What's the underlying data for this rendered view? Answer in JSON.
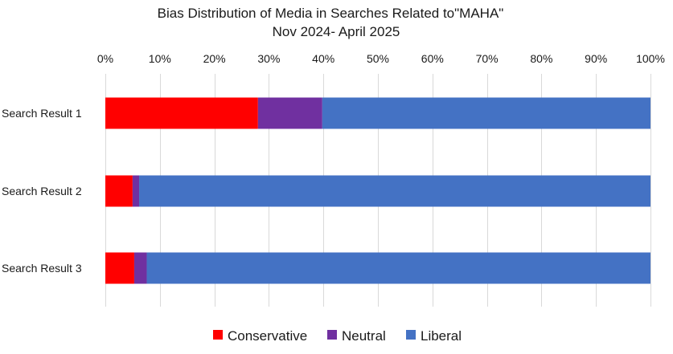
{
  "chart_data": {
    "type": "bar",
    "orientation": "horizontal",
    "stacked": "percent",
    "title": "Bias Distribution of Media in Searches Related to\"MAHA\"",
    "subtitle": "Nov 2024- April 2025",
    "categories": [
      "Search Result 1",
      "Search Result 2",
      "Search Result 3"
    ],
    "series": [
      {
        "name": "Conservative",
        "color": "#ff0000",
        "values": [
          28,
          5,
          5.3
        ]
      },
      {
        "name": "Neutral",
        "color": "#7030a0",
        "values": [
          11.8,
          1.2,
          2.3
        ]
      },
      {
        "name": "Liberal",
        "color": "#4472c4",
        "values": [
          60.2,
          93.8,
          92.4
        ]
      }
    ],
    "xlim": [
      0,
      100
    ],
    "x_ticks": [
      "0%",
      "10%",
      "20%",
      "30%",
      "40%",
      "50%",
      "60%",
      "70%",
      "80%",
      "90%",
      "100%"
    ],
    "x_axis_position": "top",
    "grid": true,
    "gridline_color": "#d9d9d9",
    "legend": "bottom"
  }
}
